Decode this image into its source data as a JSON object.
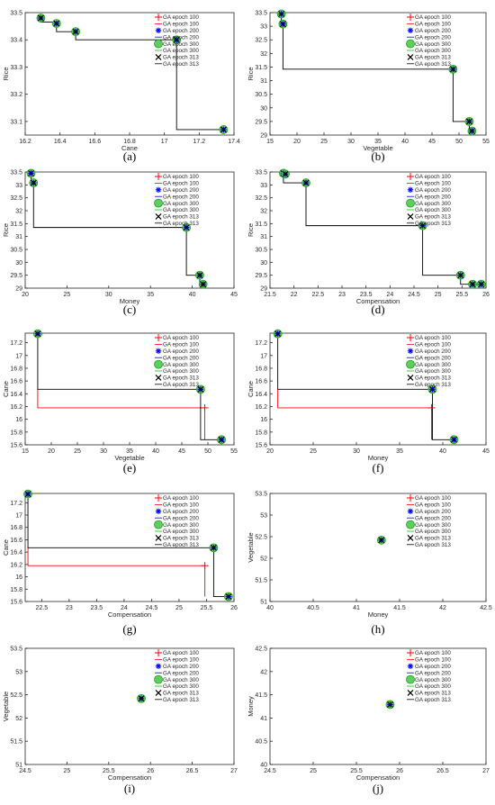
{
  "legend": [
    {
      "label": "GA epoch 100",
      "marker": "plus",
      "color": "#ff0000"
    },
    {
      "label": "GA epoch 100",
      "marker": "line",
      "color": "#ff0000"
    },
    {
      "label": "GA epoch 200",
      "marker": "star",
      "color": "#0000ff"
    },
    {
      "label": "GA epoch 200",
      "marker": "line",
      "color": "#0000ff"
    },
    {
      "label": "GA epoch 300",
      "marker": "circle",
      "color": "#00cc00"
    },
    {
      "label": "GA epoch 300",
      "marker": "line",
      "color": "#00cc00"
    },
    {
      "label": "GA epoch 313",
      "marker": "x",
      "color": "#000000"
    },
    {
      "label": "GA epoch 313",
      "marker": "line",
      "color": "#000000"
    }
  ],
  "colors": {
    "epoch100": "#ff0000",
    "epoch313": "#000000",
    "circle_fill": "#5ecf5e",
    "star": "#0000ff"
  },
  "chart_data": [
    {
      "panel": "(a)",
      "type": "scatter",
      "xlabel": "Cane",
      "ylabel": "Rice",
      "xlim": [
        16.2,
        17.4
      ],
      "ylim": [
        33.05,
        33.5
      ],
      "xticks": [
        "16.2",
        "16.4",
        "16.6",
        "16.8",
        "17",
        "17.2",
        "17.4"
      ],
      "yticks": [
        "33.1",
        "33.2",
        "33.3",
        "33.4",
        "33.5"
      ],
      "points": [
        [
          16.29,
          33.48
        ],
        [
          16.38,
          33.46
        ],
        [
          16.49,
          33.43
        ],
        [
          17.07,
          33.4
        ],
        [
          17.34,
          33.07
        ]
      ],
      "step_epoch313": [
        [
          16.29,
          33.48
        ],
        [
          16.29,
          33.465
        ],
        [
          16.38,
          33.465
        ],
        [
          16.38,
          33.43
        ],
        [
          16.49,
          33.43
        ],
        [
          16.49,
          33.4
        ],
        [
          17.07,
          33.4
        ],
        [
          17.07,
          33.07
        ],
        [
          17.34,
          33.07
        ]
      ],
      "step_epoch100": []
    },
    {
      "panel": "(b)",
      "type": "scatter",
      "xlabel": "Vegetable",
      "ylabel": "Rice",
      "xlim": [
        15,
        55
      ],
      "ylim": [
        29,
        33.5
      ],
      "xticks": [
        "15",
        "20",
        "25",
        "30",
        "35",
        "40",
        "45",
        "50",
        "55"
      ],
      "yticks": [
        "29",
        "29.5",
        "30",
        "30.5",
        "31",
        "31.5",
        "32",
        "32.5",
        "33",
        "33.5"
      ],
      "points": [
        [
          17.1,
          33.45
        ],
        [
          17.4,
          33.08
        ],
        [
          48.9,
          31.42
        ],
        [
          51.9,
          29.5
        ],
        [
          52.4,
          29.15
        ]
      ],
      "step_epoch313": [
        [
          17.1,
          33.45
        ],
        [
          17.1,
          33.08
        ],
        [
          17.4,
          33.08
        ],
        [
          17.4,
          31.42
        ],
        [
          48.9,
          31.42
        ],
        [
          48.9,
          29.5
        ],
        [
          51.9,
          29.5
        ],
        [
          51.9,
          29.15
        ],
        [
          52.4,
          29.15
        ]
      ],
      "step_epoch100": []
    },
    {
      "panel": "(c)",
      "type": "scatter",
      "xlabel": "Money",
      "ylabel": "Rice",
      "xlim": [
        20,
        45
      ],
      "ylim": [
        29,
        33.5
      ],
      "xticks": [
        "20",
        "25",
        "30",
        "35",
        "40",
        "45"
      ],
      "yticks": [
        "29",
        "29.5",
        "30",
        "30.5",
        "31",
        "31.5",
        "32",
        "32.5",
        "33",
        "33.5"
      ],
      "points": [
        [
          20.7,
          33.45
        ],
        [
          21.0,
          33.08
        ],
        [
          39.3,
          31.35
        ],
        [
          40.9,
          29.5
        ],
        [
          41.3,
          29.15
        ]
      ],
      "step_epoch313": [
        [
          20.7,
          33.45
        ],
        [
          20.7,
          33.08
        ],
        [
          21.0,
          33.08
        ],
        [
          21.0,
          31.35
        ],
        [
          39.3,
          31.35
        ],
        [
          39.3,
          29.5
        ],
        [
          40.9,
          29.5
        ],
        [
          40.9,
          29.15
        ],
        [
          41.3,
          29.15
        ]
      ],
      "step_epoch100": []
    },
    {
      "panel": "(d)",
      "type": "scatter",
      "xlabel": "Compensation",
      "ylabel": "Rice",
      "xlim": [
        21.5,
        26
      ],
      "ylim": [
        29,
        33.5
      ],
      "xticks": [
        "21.5",
        "22",
        "22.5",
        "23",
        "23.5",
        "24",
        "24.5",
        "25",
        "25.5",
        "26"
      ],
      "yticks": [
        "29",
        "29.5",
        "30",
        "30.5",
        "31",
        "31.5",
        "32",
        "32.5",
        "33",
        "33.5"
      ],
      "points": [
        [
          21.78,
          33.45
        ],
        [
          21.82,
          33.42
        ],
        [
          22.25,
          33.08
        ],
        [
          24.68,
          31.42
        ],
        [
          25.47,
          29.5
        ],
        [
          25.72,
          29.15
        ],
        [
          25.9,
          29.15
        ]
      ],
      "step_epoch313": [
        [
          21.78,
          33.45
        ],
        [
          21.78,
          33.08
        ],
        [
          22.25,
          33.08
        ],
        [
          22.25,
          31.42
        ],
        [
          24.68,
          31.42
        ],
        [
          24.68,
          29.5
        ],
        [
          25.47,
          29.5
        ],
        [
          25.47,
          29.15
        ],
        [
          25.9,
          29.15
        ]
      ],
      "step_epoch100": []
    },
    {
      "panel": "(e)",
      "type": "scatter",
      "xlabel": "Vegetable",
      "ylabel": "Cane",
      "xlim": [
        15,
        55
      ],
      "ylim": [
        15.6,
        17.35
      ],
      "xticks": [
        "15",
        "20",
        "25",
        "30",
        "35",
        "40",
        "45",
        "50",
        "55"
      ],
      "yticks": [
        "15.6",
        "15.8",
        "16",
        "16.2",
        "16.4",
        "16.6",
        "16.8",
        "17",
        "17.2"
      ],
      "points": [
        [
          17.4,
          17.34
        ],
        [
          48.6,
          16.47
        ],
        [
          52.6,
          15.68
        ]
      ],
      "step_epoch313": [
        [
          17.4,
          17.34
        ],
        [
          17.4,
          16.47
        ],
        [
          48.6,
          16.47
        ],
        [
          48.6,
          15.68
        ],
        [
          52.6,
          15.68
        ]
      ],
      "step_epoch100": [
        [
          17.4,
          16.47
        ],
        [
          17.4,
          16.18
        ],
        [
          49.4,
          16.18
        ],
        [
          49.4,
          15.68
        ]
      ],
      "plus_epoch100": [
        [
          49.4,
          16.18
        ]
      ]
    },
    {
      "panel": "(f)",
      "type": "scatter",
      "xlabel": "Money",
      "ylabel": "Cane",
      "xlim": [
        20,
        45
      ],
      "ylim": [
        15.6,
        17.35
      ],
      "xticks": [
        "20",
        "25",
        "30",
        "35",
        "40",
        "45"
      ],
      "yticks": [
        "15.6",
        "15.8",
        "16",
        "16.2",
        "16.4",
        "16.6",
        "16.8",
        "17",
        "17.2"
      ],
      "points": [
        [
          20.9,
          17.34
        ],
        [
          38.8,
          16.47
        ],
        [
          41.3,
          15.68
        ]
      ],
      "step_epoch313": [
        [
          20.9,
          17.34
        ],
        [
          20.9,
          16.47
        ],
        [
          38.8,
          16.47
        ],
        [
          38.8,
          15.68
        ],
        [
          41.3,
          15.68
        ]
      ],
      "step_epoch100": [
        [
          20.9,
          16.47
        ],
        [
          20.9,
          16.18
        ],
        [
          38.7,
          16.18
        ],
        [
          38.7,
          15.68
        ]
      ],
      "plus_epoch100": [
        [
          38.7,
          16.18
        ]
      ]
    },
    {
      "panel": "(g)",
      "type": "scatter",
      "xlabel": "Compensation",
      "ylabel": "Cane",
      "xlim": [
        22.2,
        26
      ],
      "ylim": [
        15.6,
        17.35
      ],
      "xticks": [
        "22.5",
        "23",
        "23.5",
        "24",
        "24.5",
        "25",
        "25.5",
        "26"
      ],
      "yticks": [
        "15.6",
        "15.8",
        "16",
        "16.2",
        "16.4",
        "16.6",
        "16.8",
        "17",
        "17.2"
      ],
      "points": [
        [
          22.25,
          17.34
        ],
        [
          25.63,
          16.47
        ],
        [
          25.9,
          15.68
        ]
      ],
      "step_epoch313": [
        [
          22.25,
          17.34
        ],
        [
          22.25,
          16.47
        ],
        [
          25.63,
          16.47
        ],
        [
          25.63,
          15.68
        ],
        [
          25.9,
          15.68
        ]
      ],
      "step_epoch100": [
        [
          22.25,
          16.47
        ],
        [
          22.25,
          16.18
        ],
        [
          25.47,
          16.18
        ],
        [
          25.47,
          15.68
        ]
      ],
      "plus_epoch100": [
        [
          25.47,
          16.18
        ]
      ]
    },
    {
      "panel": "(h)",
      "type": "scatter",
      "xlabel": "Money",
      "ylabel": "Vegetable",
      "xlim": [
        40,
        42.5
      ],
      "ylim": [
        51,
        53.5
      ],
      "xticks": [
        "40",
        "40.5",
        "41",
        "41.5",
        "42",
        "42.5"
      ],
      "yticks": [
        "51",
        "51.5",
        "52",
        "52.5",
        "53",
        "53.5"
      ],
      "points": [
        [
          41.29,
          52.42
        ]
      ],
      "step_epoch313": [],
      "step_epoch100": []
    },
    {
      "panel": "(i)",
      "type": "scatter",
      "xlabel": "Compensation",
      "ylabel": "Vegetable",
      "xlim": [
        24.5,
        27
      ],
      "ylim": [
        51,
        53.5
      ],
      "xticks": [
        "24.5",
        "25",
        "25.5",
        "26",
        "26.5",
        "27"
      ],
      "yticks": [
        "51",
        "51.5",
        "52",
        "52.5",
        "53",
        "53.5"
      ],
      "points": [
        [
          25.89,
          52.42
        ]
      ],
      "step_epoch313": [],
      "step_epoch100": []
    },
    {
      "panel": "(j)",
      "type": "scatter",
      "xlabel": "Compensation",
      "ylabel": "Money",
      "xlim": [
        24.5,
        27
      ],
      "ylim": [
        40,
        42.5
      ],
      "xticks": [
        "24.5",
        "25",
        "25.5",
        "26",
        "26.5",
        "27"
      ],
      "yticks": [
        "40",
        "40.5",
        "41",
        "41.5",
        "42",
        "42.5"
      ],
      "points": [
        [
          25.89,
          41.29
        ]
      ],
      "step_epoch313": [],
      "step_epoch100": []
    }
  ]
}
